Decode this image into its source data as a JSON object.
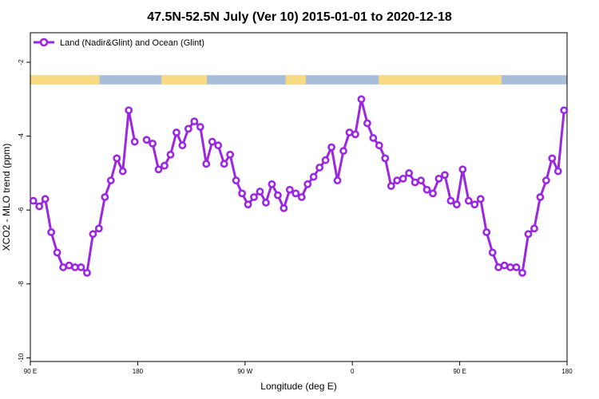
{
  "chart_data": {
    "type": "line",
    "title": "47.5N-52.5N July (Ver 10)   2015-01-01 to 2020-12-18",
    "xlabel": "Longitude (deg E)",
    "ylabel": "XCO2 - MLO trend (ppm)",
    "xlim": [
      90,
      450
    ],
    "ylim": [
      -10.1,
      -1.2
    ],
    "x_ticks": [
      {
        "value": 90,
        "label": "90 E"
      },
      {
        "value": 180,
        "label": "180"
      },
      {
        "value": 270,
        "label": "90 W"
      },
      {
        "value": 360,
        "label": "0"
      },
      {
        "value": 450,
        "label": "90 E"
      },
      {
        "value": 540,
        "label": "180"
      }
    ],
    "y_ticks": [
      -2,
      -4,
      -6,
      -8,
      -10
    ],
    "legend": {
      "position": "top-left",
      "entries": [
        "Land (Nadir&Glint) and Ocean (Glint)"
      ]
    },
    "series": [
      {
        "name": "Land (Nadir&Glint) and Ocean (Glint)",
        "color": "#9b27e0",
        "segments": [
          {
            "x": [
              92.5,
              97.5,
              102.5,
              107.5,
              112.5,
              117.5,
              122.5,
              127.5,
              132.5,
              137.5,
              142.5,
              147.5,
              152.5,
              157.5,
              162.5,
              167.5,
              172.5,
              177.5
            ],
            "y": [
              -5.75,
              -5.9,
              -5.7,
              -6.6,
              -7.15,
              -7.55,
              -7.5,
              -7.55,
              -7.55,
              -7.7,
              -6.65,
              -6.5,
              -5.65,
              -5.2,
              -4.6,
              -4.95,
              -3.3,
              -4.15
            ]
          },
          {
            "x": [
              187.5,
              192.5,
              197.5,
              202.5,
              207.5,
              212.5,
              217.5,
              222.5,
              227.5,
              232.5,
              237.5,
              242.5,
              247.5,
              252.5,
              257.5,
              262.5,
              267.5,
              272.5,
              277.5,
              282.5,
              287.5,
              292.5,
              297.5,
              302.5,
              307.5,
              312.5,
              317.5,
              322.5,
              327.5,
              332.5,
              337.5,
              342.5,
              347.5,
              352.5,
              357.5,
              362.5,
              367.5,
              372.5,
              377.5,
              382.5,
              387.5,
              392.5,
              397.5,
              402.5,
              407.5,
              412.5,
              417.5,
              422.5,
              427.5,
              432.5,
              437.5,
              442.5,
              447.5,
              452.5,
              457.5,
              462.5,
              467.5,
              472.5,
              477.5,
              482.5,
              487.5,
              492.5,
              497.5,
              502.5,
              507.5,
              512.5,
              517.5,
              522.5,
              527.5,
              532.5,
              537.5
            ],
            "y": [
              -4.1,
              -4.2,
              -4.9,
              -4.8,
              -4.5,
              -3.9,
              -4.25,
              -3.8,
              -3.6,
              -3.75,
              -4.75,
              -4.15,
              -4.25,
              -4.75,
              -4.5,
              -5.2,
              -5.55,
              -5.85,
              -5.65,
              -5.5,
              -5.8,
              -5.3,
              -5.6,
              -5.95,
              -5.45,
              -5.55,
              -5.65,
              -5.3,
              -5.1,
              -4.85,
              -4.65,
              -4.3,
              -5.2,
              -4.4,
              -3.9,
              -3.95,
              -3.0,
              -3.65,
              -4.05,
              -4.25,
              -4.6,
              -5.35,
              -5.2,
              -5.15,
              -5.0,
              -5.25,
              -5.2,
              -5.45,
              -5.55,
              -5.15,
              -5.05,
              -5.75,
              -5.85,
              -4.9,
              -5.75,
              -5.85,
              -5.7,
              -6.6,
              -7.15,
              -7.55,
              -7.5,
              -7.55,
              -7.55,
              -7.7,
              -6.65,
              -6.5,
              -5.65,
              -5.2,
              -4.6,
              -4.95,
              -3.3
            ]
          }
        ]
      }
    ],
    "land_ocean_bar": {
      "y_range": [
        -2.35,
        -2.6
      ],
      "ocean_color": "#a8bdd9",
      "land_color": "#f7da82",
      "land_ranges": [
        [
          90,
          148
        ],
        [
          200,
          238
        ],
        [
          304,
          321
        ],
        [
          382,
          485
        ]
      ]
    }
  }
}
